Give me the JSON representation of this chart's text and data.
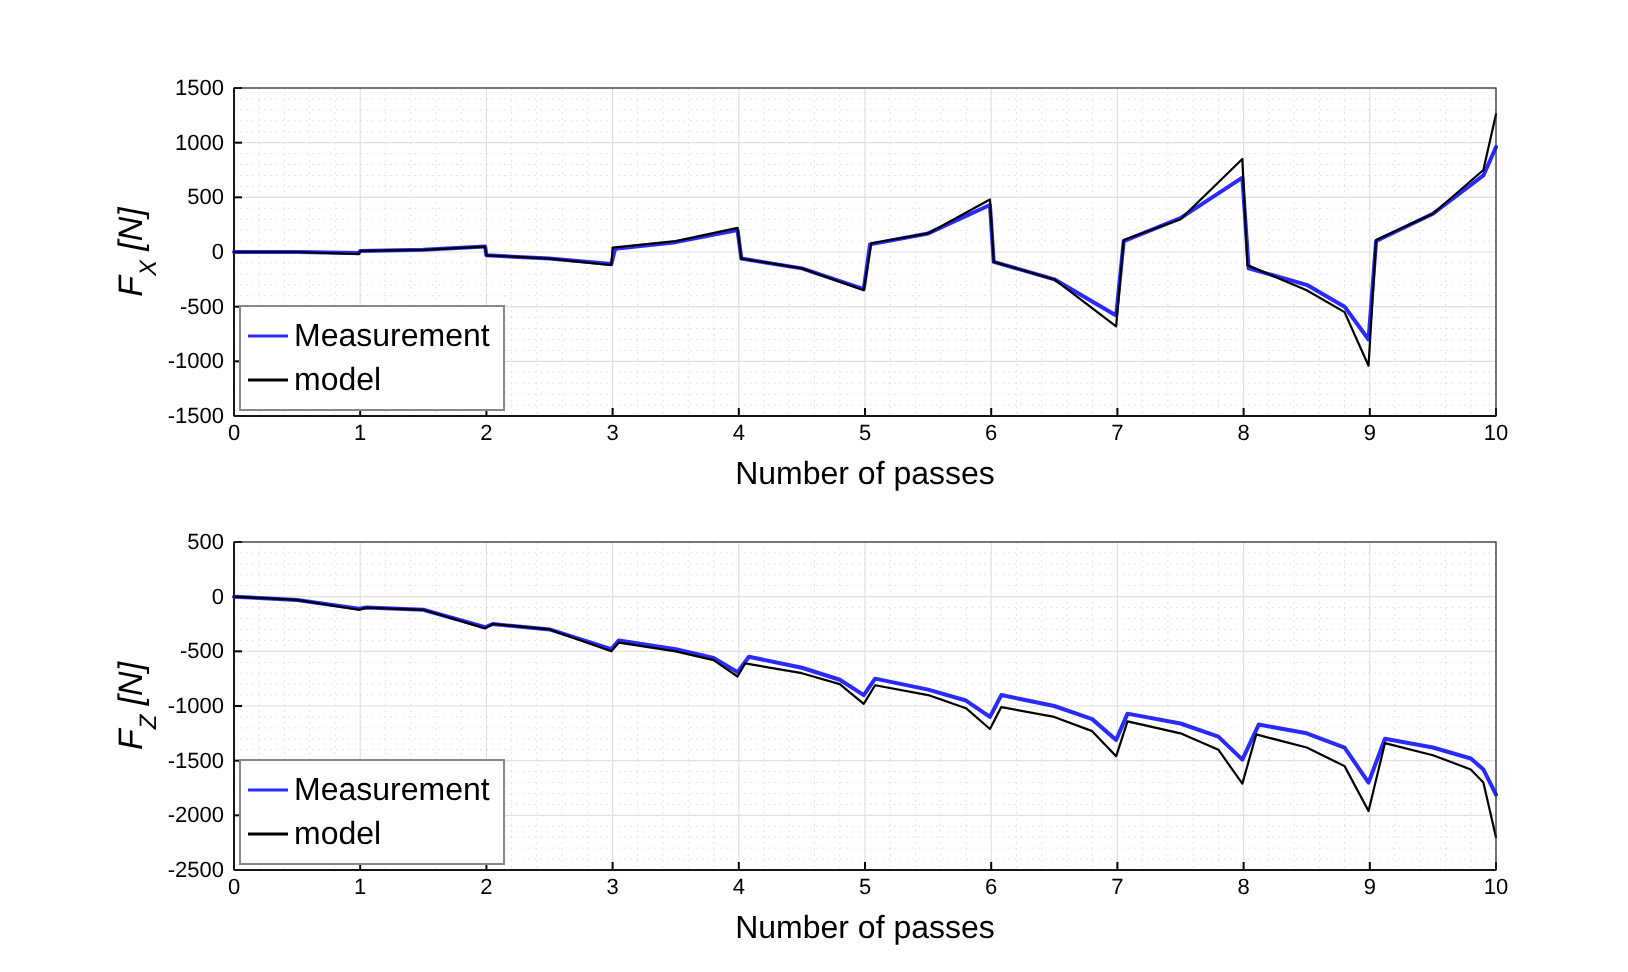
{
  "chart_data": [
    {
      "type": "line",
      "xlabel": "Number of passes",
      "ylabel": "F$_{X}$ [N]",
      "xlim": [
        0,
        10
      ],
      "xticks": [
        0,
        1,
        2,
        3,
        4,
        5,
        6,
        7,
        8,
        9,
        10
      ],
      "ylim": [
        -1500,
        1500
      ],
      "yticks": [
        -1500,
        -1000,
        -500,
        0,
        500,
        1000,
        1500
      ],
      "grid": true,
      "legend": "bottom left",
      "series": [
        {
          "name": "Measurement",
          "color": "#2a2aff",
          "x": [
            0,
            0.5,
            0.99,
            1.0,
            1.5,
            1.99,
            2.0,
            2.5,
            2.99,
            3.02,
            3.5,
            3.99,
            4.02,
            4.5,
            4.99,
            5.04,
            5.5,
            5.99,
            6.02,
            6.5,
            6.99,
            7.05,
            7.5,
            7.99,
            8.04,
            8.5,
            8.8,
            8.99,
            9.05,
            9.5,
            9.9,
            10
          ],
          "values": [
            0,
            0,
            -10,
            10,
            20,
            50,
            -30,
            -60,
            -110,
            30,
            90,
            200,
            -60,
            -150,
            -340,
            70,
            170,
            430,
            -90,
            -250,
            -580,
            100,
            310,
            680,
            -150,
            -300,
            -500,
            -800,
            100,
            350,
            700,
            960
          ]
        },
        {
          "name": "model",
          "color": "#000000",
          "x": [
            0,
            0.5,
            0.99,
            1.0,
            1.5,
            1.99,
            2.0,
            2.5,
            2.99,
            3.0,
            3.5,
            3.99,
            4.02,
            4.5,
            4.99,
            5.05,
            5.5,
            5.99,
            6.02,
            6.5,
            6.99,
            7.05,
            7.5,
            7.99,
            8.03,
            8.5,
            8.8,
            8.99,
            9.05,
            9.5,
            9.9,
            10
          ],
          "values": [
            0,
            0,
            -20,
            10,
            20,
            50,
            -30,
            -60,
            -120,
            40,
            100,
            220,
            -60,
            -150,
            -350,
            80,
            170,
            480,
            -90,
            -250,
            -680,
            110,
            300,
            850,
            -120,
            -350,
            -550,
            -1040,
            110,
            350,
            750,
            1260
          ]
        }
      ]
    },
    {
      "type": "line",
      "xlabel": "Number of passes",
      "ylabel": "F$_{Z}$ [N]",
      "xlim": [
        0,
        10
      ],
      "xticks": [
        0,
        1,
        2,
        3,
        4,
        5,
        6,
        7,
        8,
        9,
        10
      ],
      "ylim": [
        -2500,
        500
      ],
      "yticks": [
        -2500,
        -2000,
        -1500,
        -1000,
        -500,
        0,
        500
      ],
      "grid": true,
      "legend": "bottom left",
      "series": [
        {
          "name": "Measurement",
          "color": "#2a2aff",
          "x": [
            0,
            0.5,
            0.99,
            1.05,
            1.5,
            1.99,
            2.05,
            2.5,
            2.99,
            3.05,
            3.5,
            3.8,
            3.99,
            4.08,
            4.5,
            4.8,
            4.99,
            5.08,
            5.5,
            5.8,
            5.99,
            6.08,
            6.5,
            6.8,
            6.99,
            7.08,
            7.5,
            7.8,
            7.99,
            8.12,
            8.5,
            8.8,
            8.99,
            9.12,
            9.5,
            9.8,
            9.9,
            10
          ],
          "values": [
            0,
            -30,
            -110,
            -100,
            -120,
            -280,
            -250,
            -300,
            -480,
            -400,
            -480,
            -560,
            -690,
            -550,
            -650,
            -760,
            -900,
            -750,
            -850,
            -950,
            -1100,
            -900,
            -1000,
            -1120,
            -1310,
            -1070,
            -1160,
            -1280,
            -1490,
            -1170,
            -1250,
            -1380,
            -1700,
            -1300,
            -1380,
            -1480,
            -1580,
            -1810
          ]
        },
        {
          "name": "model",
          "color": "#000000",
          "x": [
            0,
            0.5,
            0.99,
            1.05,
            1.5,
            1.99,
            2.05,
            2.5,
            2.99,
            3.05,
            3.5,
            3.8,
            3.99,
            4.05,
            4.5,
            4.8,
            4.99,
            5.08,
            5.5,
            5.8,
            5.99,
            6.08,
            6.5,
            6.8,
            6.99,
            7.08,
            7.5,
            7.8,
            7.99,
            8.1,
            8.5,
            8.8,
            8.99,
            9.12,
            9.5,
            9.8,
            9.9,
            10
          ],
          "values": [
            0,
            -30,
            -120,
            -100,
            -120,
            -290,
            -250,
            -300,
            -500,
            -420,
            -500,
            -580,
            -730,
            -610,
            -700,
            -800,
            -980,
            -810,
            -900,
            -1020,
            -1210,
            -1010,
            -1100,
            -1230,
            -1460,
            -1140,
            -1250,
            -1400,
            -1710,
            -1260,
            -1380,
            -1550,
            -1960,
            -1340,
            -1450,
            -1580,
            -1700,
            -2200
          ]
        }
      ]
    }
  ]
}
